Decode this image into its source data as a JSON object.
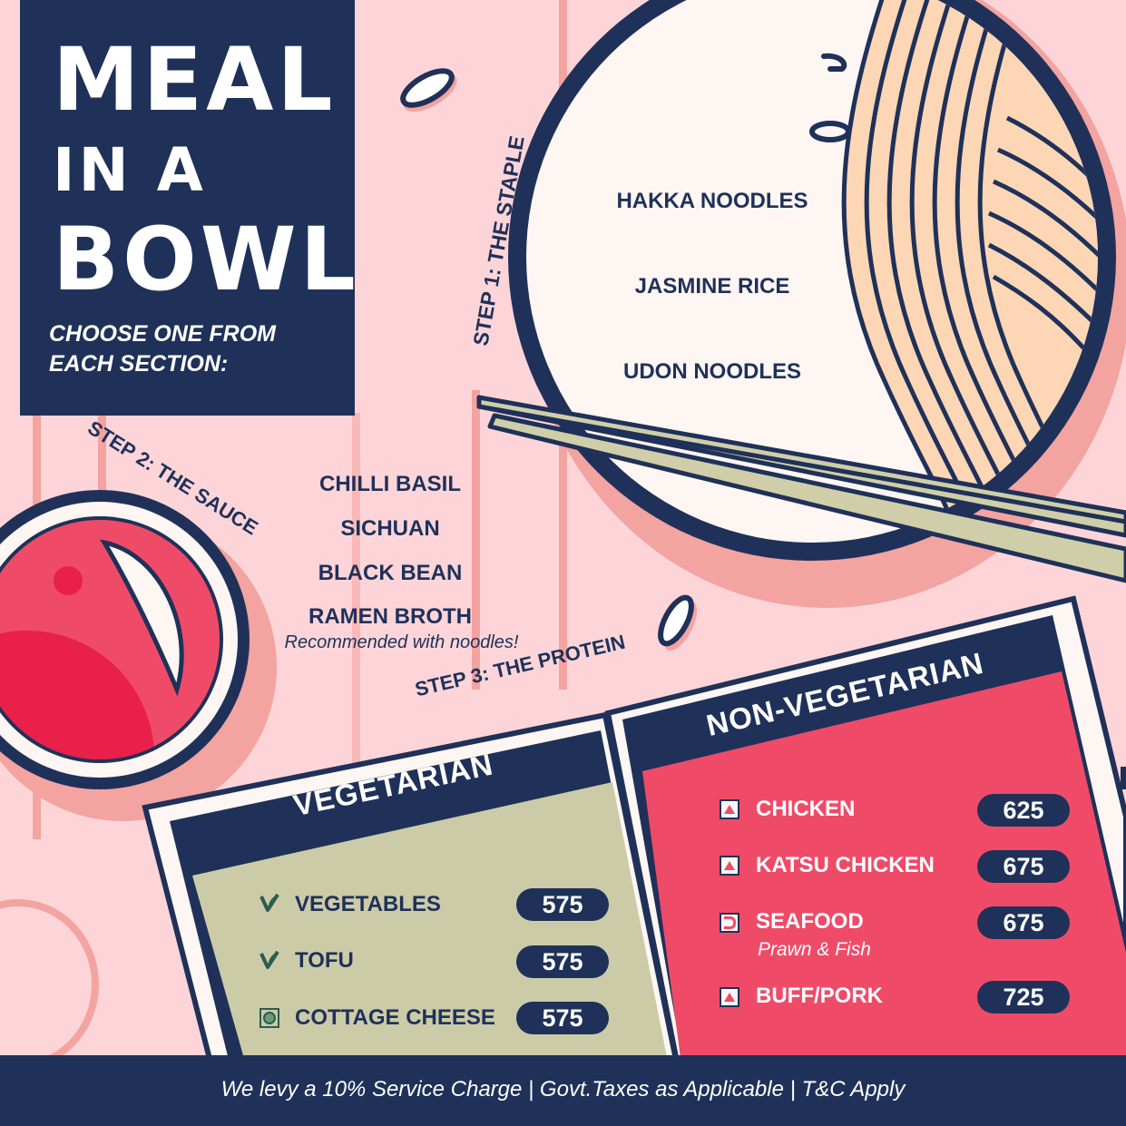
{
  "title": {
    "line1": "MEAL",
    "line2": "IN A",
    "line3": "BOWL"
  },
  "subtitle": {
    "line1": "CHOOSE ONE FROM",
    "line2": "EACH SECTION:"
  },
  "step1": {
    "label": "STEP 1: THE STAPLE",
    "items": [
      "HAKKA NOODLES",
      "JASMINE RICE",
      "UDON NOODLES"
    ]
  },
  "step2": {
    "label": "STEP 2: THE SAUCE",
    "items": [
      "CHILLI BASIL",
      "SICHUAN",
      "BLACK BEAN",
      "RAMEN BROTH"
    ],
    "note": "Recommended with noodles!"
  },
  "step3": {
    "label": "STEP 3: THE PROTEIN"
  },
  "vegetarian": {
    "heading": "VEGETARIAN",
    "items": [
      {
        "name": "VEGETABLES",
        "price": "575",
        "icon": "leaf-icon"
      },
      {
        "name": "TOFU",
        "price": "575",
        "icon": "leaf-icon"
      },
      {
        "name": "COTTAGE CHEESE",
        "price": "575",
        "icon": "cheese-icon"
      }
    ]
  },
  "nonveg": {
    "heading": "NON-VEGETARIAN",
    "items": [
      {
        "name": "CHICKEN",
        "price": "625",
        "icon": "meat-icon"
      },
      {
        "name": "KATSU CHICKEN",
        "price": "675",
        "icon": "meat-icon"
      },
      {
        "name": "SEAFOOD",
        "price": "675",
        "icon": "fish-icon",
        "note": "Prawn & Fish"
      },
      {
        "name": "BUFF/PORK",
        "price": "725",
        "icon": "meat-icon"
      }
    ]
  },
  "footer": "We levy a 10% Service Charge | Govt.Taxes as Applicable | T&C Apply",
  "colors": {
    "navy": "#1f3159",
    "pink_bg": "#fdd5d8",
    "red": "#ef4b68",
    "sage": "#cccba8",
    "noodle": "#fcd6b5"
  }
}
